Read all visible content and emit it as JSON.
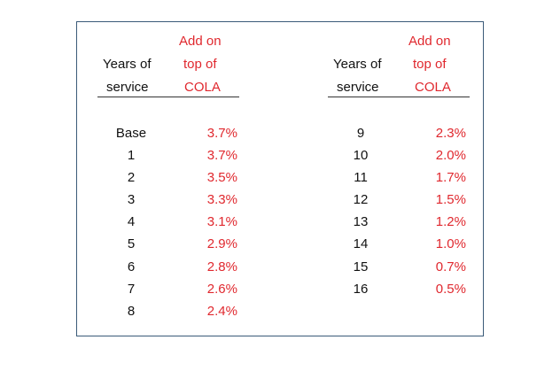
{
  "header": {
    "years_label_line1": "Years of",
    "years_label_line2": "service",
    "addon_line1": "Add on",
    "addon_line2": "top of",
    "addon_line3": "COLA"
  },
  "left_rows": [
    {
      "years": "Base",
      "pct": "3.7%"
    },
    {
      "years": "1",
      "pct": "3.7%"
    },
    {
      "years": "2",
      "pct": "3.5%"
    },
    {
      "years": "3",
      "pct": "3.3%"
    },
    {
      "years": "4",
      "pct": "3.1%"
    },
    {
      "years": "5",
      "pct": "2.9%"
    },
    {
      "years": "6",
      "pct": "2.8%"
    },
    {
      "years": "7",
      "pct": "2.6%"
    },
    {
      "years": "8",
      "pct": "2.4%"
    }
  ],
  "right_rows": [
    {
      "years": "9",
      "pct": "2.3%"
    },
    {
      "years": "10",
      "pct": "2.0%"
    },
    {
      "years": "11",
      "pct": "1.7%"
    },
    {
      "years": "12",
      "pct": "1.5%"
    },
    {
      "years": "13",
      "pct": "1.2%"
    },
    {
      "years": "14",
      "pct": "1.0%"
    },
    {
      "years": "15",
      "pct": "0.7%"
    },
    {
      "years": "16",
      "pct": "0.5%"
    }
  ],
  "colors": {
    "text": "#111111",
    "accent": "#e0282e",
    "frame": "#3a5a78"
  }
}
